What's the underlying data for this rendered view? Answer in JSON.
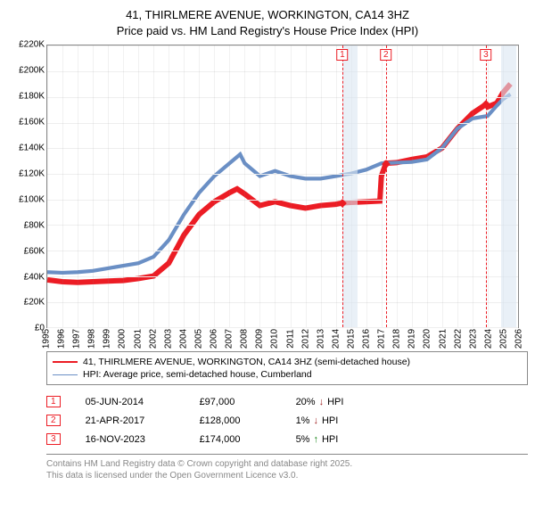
{
  "title_line1": "41, THIRLMERE AVENUE, WORKINGTON, CA14 3HZ",
  "title_line2": "Price paid vs. HM Land Registry's House Price Index (HPI)",
  "chart": {
    "type": "line",
    "xlim": [
      1995,
      2026
    ],
    "ylim": [
      0,
      220000
    ],
    "ytick_step": 20000,
    "y_format_prefix": "£",
    "y_format_suffix": "K",
    "y_format_divisor": 1000,
    "x_ticks": [
      1995,
      1996,
      1997,
      1998,
      1999,
      2000,
      2001,
      2002,
      2003,
      2004,
      2005,
      2006,
      2007,
      2008,
      2009,
      2010,
      2011,
      2012,
      2013,
      2014,
      2015,
      2016,
      2017,
      2018,
      2019,
      2020,
      2021,
      2022,
      2023,
      2024,
      2025,
      2026
    ],
    "grid_color": "#eeeeee",
    "border_color": "#888888",
    "background_color": "#ffffff",
    "vband_color": "#dae6f2",
    "vbands": [
      {
        "x_start": 2014.43,
        "x_end": 2015.43
      },
      {
        "x_start": 2024.88,
        "x_end": 2025.88
      }
    ],
    "vdash_color": "#ec1c24",
    "vdashes": [
      2014.43,
      2017.3,
      2023.88
    ],
    "marker_labels": [
      {
        "x": 2014.43,
        "label": "1"
      },
      {
        "x": 2017.3,
        "label": "2"
      },
      {
        "x": 2023.88,
        "label": "3"
      }
    ],
    "series": [
      {
        "name": "price_paid",
        "label": "41, THIRLMERE AVENUE, WORKINGTON, CA14 3HZ (semi-detached house)",
        "color": "#ec1c24",
        "line_width": 2.0,
        "data": [
          [
            1995,
            37000
          ],
          [
            1996,
            35500
          ],
          [
            1997,
            35000
          ],
          [
            1998,
            35500
          ],
          [
            1999,
            36000
          ],
          [
            2000,
            36500
          ],
          [
            2001,
            38000
          ],
          [
            2002,
            40000
          ],
          [
            2003,
            50000
          ],
          [
            2004,
            72000
          ],
          [
            2005,
            88000
          ],
          [
            2006,
            98000
          ],
          [
            2007,
            105000
          ],
          [
            2007.5,
            108000
          ],
          [
            2008,
            104000
          ],
          [
            2009,
            95000
          ],
          [
            2010,
            98000
          ],
          [
            2011,
            95000
          ],
          [
            2012,
            93000
          ],
          [
            2013,
            95000
          ],
          [
            2014,
            96000
          ],
          [
            2014.43,
            97000
          ],
          [
            2015,
            97500
          ],
          [
            2016,
            98000
          ],
          [
            2016.9,
            98500
          ],
          [
            2017,
            118000
          ],
          [
            2017.3,
            128000
          ],
          [
            2018,
            128500
          ],
          [
            2019,
            131000
          ],
          [
            2020,
            133000
          ],
          [
            2021,
            140000
          ],
          [
            2022,
            155000
          ],
          [
            2023,
            167000
          ],
          [
            2023.88,
            174000
          ],
          [
            2024,
            172000
          ],
          [
            2024.6,
            175000
          ],
          [
            2025,
            183000
          ],
          [
            2025.5,
            190000
          ]
        ],
        "diamonds": [
          {
            "x": 2014.43,
            "y": 97000
          },
          {
            "x": 2017.3,
            "y": 128000
          },
          {
            "x": 2023.88,
            "y": 174000
          }
        ]
      },
      {
        "name": "hpi",
        "label": "HPI: Average price, semi-detached house, Cumberland",
        "color": "#6a8fc5",
        "line_width": 1.4,
        "data": [
          [
            1995,
            43000
          ],
          [
            1996,
            42500
          ],
          [
            1997,
            43000
          ],
          [
            1998,
            44000
          ],
          [
            1999,
            46000
          ],
          [
            2000,
            48000
          ],
          [
            2001,
            50000
          ],
          [
            2002,
            55000
          ],
          [
            2003,
            68000
          ],
          [
            2004,
            88000
          ],
          [
            2005,
            105000
          ],
          [
            2006,
            118000
          ],
          [
            2007,
            128000
          ],
          [
            2007.7,
            135000
          ],
          [
            2008,
            128000
          ],
          [
            2009,
            118000
          ],
          [
            2010,
            122000
          ],
          [
            2011,
            118000
          ],
          [
            2012,
            116000
          ],
          [
            2013,
            116000
          ],
          [
            2014,
            118000
          ],
          [
            2015,
            120000
          ],
          [
            2016,
            123000
          ],
          [
            2017,
            128000
          ],
          [
            2018,
            128500
          ],
          [
            2019,
            129000
          ],
          [
            2020,
            131000
          ],
          [
            2021,
            140000
          ],
          [
            2022,
            155000
          ],
          [
            2023,
            163000
          ],
          [
            2024,
            165000
          ],
          [
            2024.6,
            173000
          ],
          [
            2025,
            178000
          ],
          [
            2025.5,
            182000
          ]
        ]
      }
    ]
  },
  "legend": {
    "border_color": "#888888",
    "items": [
      {
        "color": "#ec1c24",
        "width": 2.0,
        "label": "41, THIRLMERE AVENUE, WORKINGTON, CA14 3HZ (semi-detached house)"
      },
      {
        "color": "#6a8fc5",
        "width": 1.4,
        "label": "HPI: Average price, semi-detached house, Cumberland"
      }
    ]
  },
  "events": [
    {
      "num": "1",
      "date": "05-JUN-2014",
      "price": "£97,000",
      "delta": "20%",
      "direction": "down",
      "suffix": "HPI"
    },
    {
      "num": "2",
      "date": "21-APR-2017",
      "price": "£128,000",
      "delta": "1%",
      "direction": "down",
      "suffix": "HPI"
    },
    {
      "num": "3",
      "date": "16-NOV-2023",
      "price": "£174,000",
      "delta": "5%",
      "direction": "up",
      "suffix": "HPI"
    }
  ],
  "footer_line1": "Contains HM Land Registry data © Crown copyright and database right 2025.",
  "footer_line2": "This data is licensed under the Open Government Licence v3.0."
}
